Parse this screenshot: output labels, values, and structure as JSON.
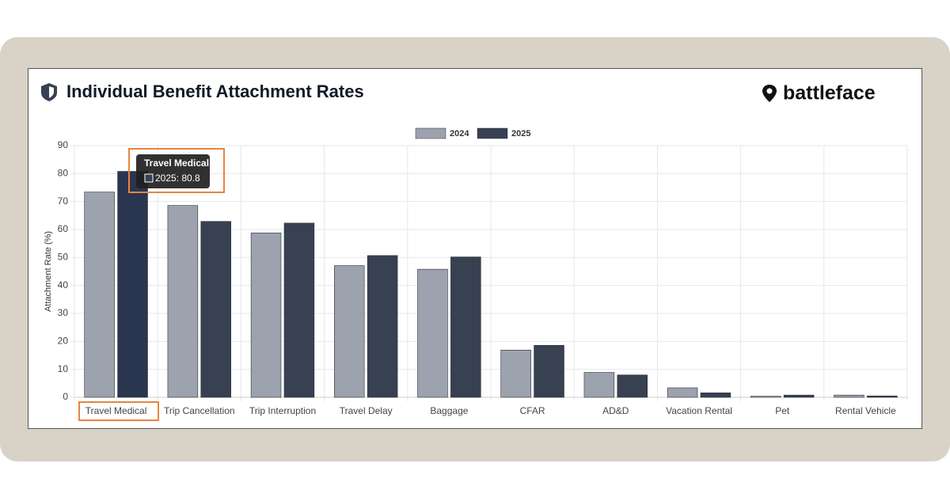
{
  "header": {
    "title": "Individual Benefit Attachment Rates",
    "brand": "battleface"
  },
  "chart_data": {
    "type": "bar",
    "y_label": "Attachment Rate (%)",
    "categories": [
      "Travel Medical",
      "Trip Cancellation",
      "Trip Interruption",
      "Travel Delay",
      "Baggage",
      "CFAR",
      "AD&D",
      "Vacation Rental",
      "Pet",
      "Rental Vehicle"
    ],
    "series": [
      {
        "name": "2024",
        "color": "#9ca3af",
        "values": [
          73.4,
          68.6,
          58.8,
          47.1,
          45.8,
          16.9,
          8.9,
          3.4,
          0.4,
          0.8
        ]
      },
      {
        "name": "2025",
        "color": "#374151",
        "values": [
          80.8,
          62.9,
          62.3,
          50.7,
          50.2,
          18.6,
          8.0,
          1.6,
          0.8,
          0.5
        ]
      }
    ],
    "ylim": [
      0,
      90
    ],
    "yticks": [
      0,
      10,
      20,
      30,
      40,
      50,
      60,
      70,
      80,
      90
    ],
    "grid": true,
    "legend": "top",
    "tooltip": {
      "title": "Travel Medical",
      "label": "2025: 80.8"
    }
  }
}
